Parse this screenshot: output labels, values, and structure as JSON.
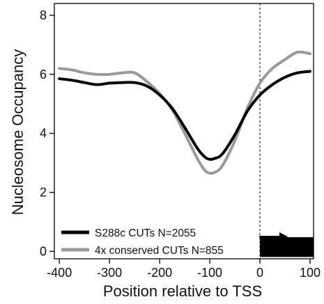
{
  "chart_data": {
    "type": "line",
    "xlabel": "Position relative to TSS",
    "ylabel": "Nucleosome Occupancy",
    "xlim": [
      -410,
      107
    ],
    "ylim": [
      -0.25,
      8.4
    ],
    "x_ticks": [
      -400,
      -300,
      -200,
      -100,
      0,
      100
    ],
    "x_tick_labels": [
      "-400",
      "-300",
      "-200",
      "-100",
      "0",
      "100"
    ],
    "y_ticks": [
      0,
      2,
      4,
      6,
      8
    ],
    "y_tick_labels": [
      "0",
      "2",
      "4",
      "6",
      "8"
    ],
    "grid": false,
    "legend_position": "bottom-left",
    "tss_marker_x": 0,
    "gene_box": {
      "x_start": 0,
      "x_end": 107,
      "y_start": 0,
      "y_end": 0.2
    },
    "series": [
      {
        "name": "S288c CUTs N=2055",
        "color": "#000000",
        "x": [
          -400,
          -375,
          -350,
          -325,
          -300,
          -275,
          -250,
          -225,
          -200,
          -175,
          -150,
          -125,
          -110,
          -100,
          -90,
          -75,
          -50,
          -25,
          0,
          25,
          50,
          75,
          100
        ],
        "y": [
          5.85,
          5.8,
          5.72,
          5.65,
          5.7,
          5.72,
          5.72,
          5.6,
          5.3,
          4.85,
          4.2,
          3.5,
          3.2,
          3.12,
          3.15,
          3.3,
          3.95,
          4.75,
          5.3,
          5.65,
          5.9,
          6.05,
          6.1
        ]
      },
      {
        "name": "4x conserved CUTs N=855",
        "color": "#999999",
        "x": [
          -400,
          -375,
          -350,
          -325,
          -300,
          -275,
          -250,
          -225,
          -200,
          -175,
          -150,
          -125,
          -110,
          -100,
          -90,
          -75,
          -50,
          -25,
          0,
          25,
          50,
          75,
          100
        ],
        "y": [
          6.2,
          6.15,
          6.05,
          6.0,
          6.0,
          6.05,
          6.05,
          5.75,
          5.35,
          4.8,
          4.0,
          3.15,
          2.75,
          2.65,
          2.68,
          2.9,
          3.75,
          4.85,
          5.7,
          6.2,
          6.5,
          6.75,
          6.7
        ]
      }
    ]
  }
}
